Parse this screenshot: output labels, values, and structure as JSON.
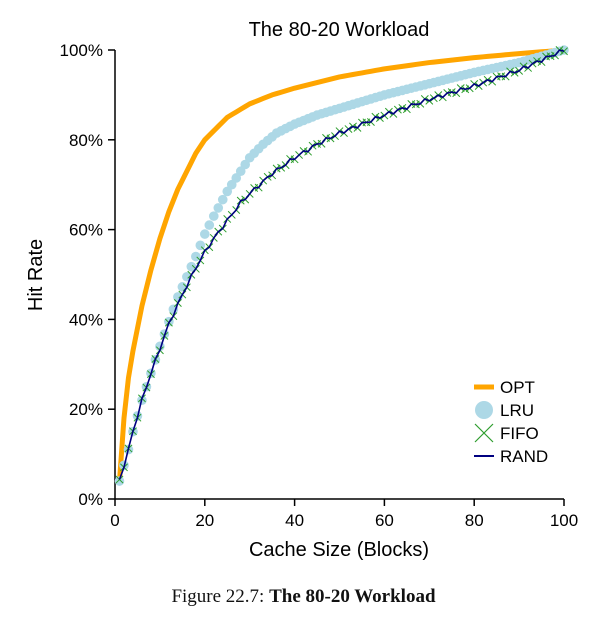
{
  "caption": {
    "prefix": "Figure 22.7:",
    "title": "The 80-20 Workload"
  },
  "chart_data": {
    "type": "line",
    "title": "The 80-20 Workload",
    "xlabel": "Cache Size (Blocks)",
    "ylabel": "Hit Rate",
    "xlim": [
      0,
      100
    ],
    "ylim": [
      0,
      100
    ],
    "xticks": [
      "0",
      "20",
      "40",
      "60",
      "80",
      "100"
    ],
    "yticks": [
      "0%",
      "20%",
      "40%",
      "60%",
      "80%",
      "100%"
    ],
    "grid": false,
    "legend_position": "bottom-right",
    "series": [
      {
        "name": "OPT",
        "style": "thick-line",
        "color": "#FFA500",
        "x": [
          1,
          2,
          3,
          4,
          5,
          6,
          7,
          8,
          10,
          12,
          14,
          16,
          18,
          20,
          22,
          25,
          30,
          35,
          40,
          50,
          60,
          70,
          80,
          90,
          100
        ],
        "y": [
          4,
          18,
          27,
          33,
          38,
          43,
          47,
          51,
          58,
          64,
          69,
          73,
          77,
          80,
          82,
          85,
          88,
          90,
          91.5,
          94,
          95.8,
          97.2,
          98.3,
          99.2,
          100
        ]
      },
      {
        "name": "LRU",
        "style": "dots",
        "color": "#ADD8E6",
        "x": [
          1,
          2,
          3,
          4,
          5,
          6,
          8,
          10,
          12,
          14,
          16,
          18,
          20,
          22,
          25,
          28,
          30,
          33,
          36,
          40,
          45,
          50,
          60,
          70,
          80,
          90,
          100
        ],
        "y": [
          4,
          7.5,
          11,
          15,
          18.5,
          22,
          28,
          34,
          39.5,
          45,
          49.5,
          54,
          59,
          63,
          68.5,
          73,
          76,
          79,
          81.5,
          83.5,
          85.5,
          87,
          90,
          92.5,
          95,
          97.2,
          100
        ]
      },
      {
        "name": "FIFO",
        "style": "x-markers",
        "color": "#2E9E2E",
        "x": [
          1,
          2,
          3,
          4,
          5,
          6,
          8,
          10,
          12,
          15,
          18,
          20,
          22,
          25,
          28,
          30,
          35,
          40,
          45,
          50,
          55,
          60,
          70,
          80,
          90,
          100
        ],
        "y": [
          4,
          7.5,
          11,
          15,
          18.5,
          22,
          28,
          33.5,
          39,
          45.5,
          51.5,
          55,
          58,
          62,
          66,
          68,
          72.5,
          76,
          79,
          81.5,
          83.5,
          85.5,
          89,
          92,
          95.5,
          100
        ]
      },
      {
        "name": "RAND",
        "style": "thin-line",
        "color": "#000080",
        "x": [
          1,
          2,
          3,
          4,
          5,
          6,
          8,
          10,
          12,
          15,
          18,
          20,
          22,
          25,
          28,
          30,
          35,
          40,
          45,
          50,
          55,
          60,
          70,
          80,
          90,
          100
        ],
        "y": [
          4,
          7.5,
          11,
          15,
          18.5,
          22,
          28,
          33.5,
          39,
          45.5,
          51.5,
          55,
          58,
          62,
          66,
          68,
          72.5,
          76,
          79,
          81.5,
          83.5,
          85.5,
          89,
          92,
          95.5,
          100
        ]
      }
    ]
  }
}
